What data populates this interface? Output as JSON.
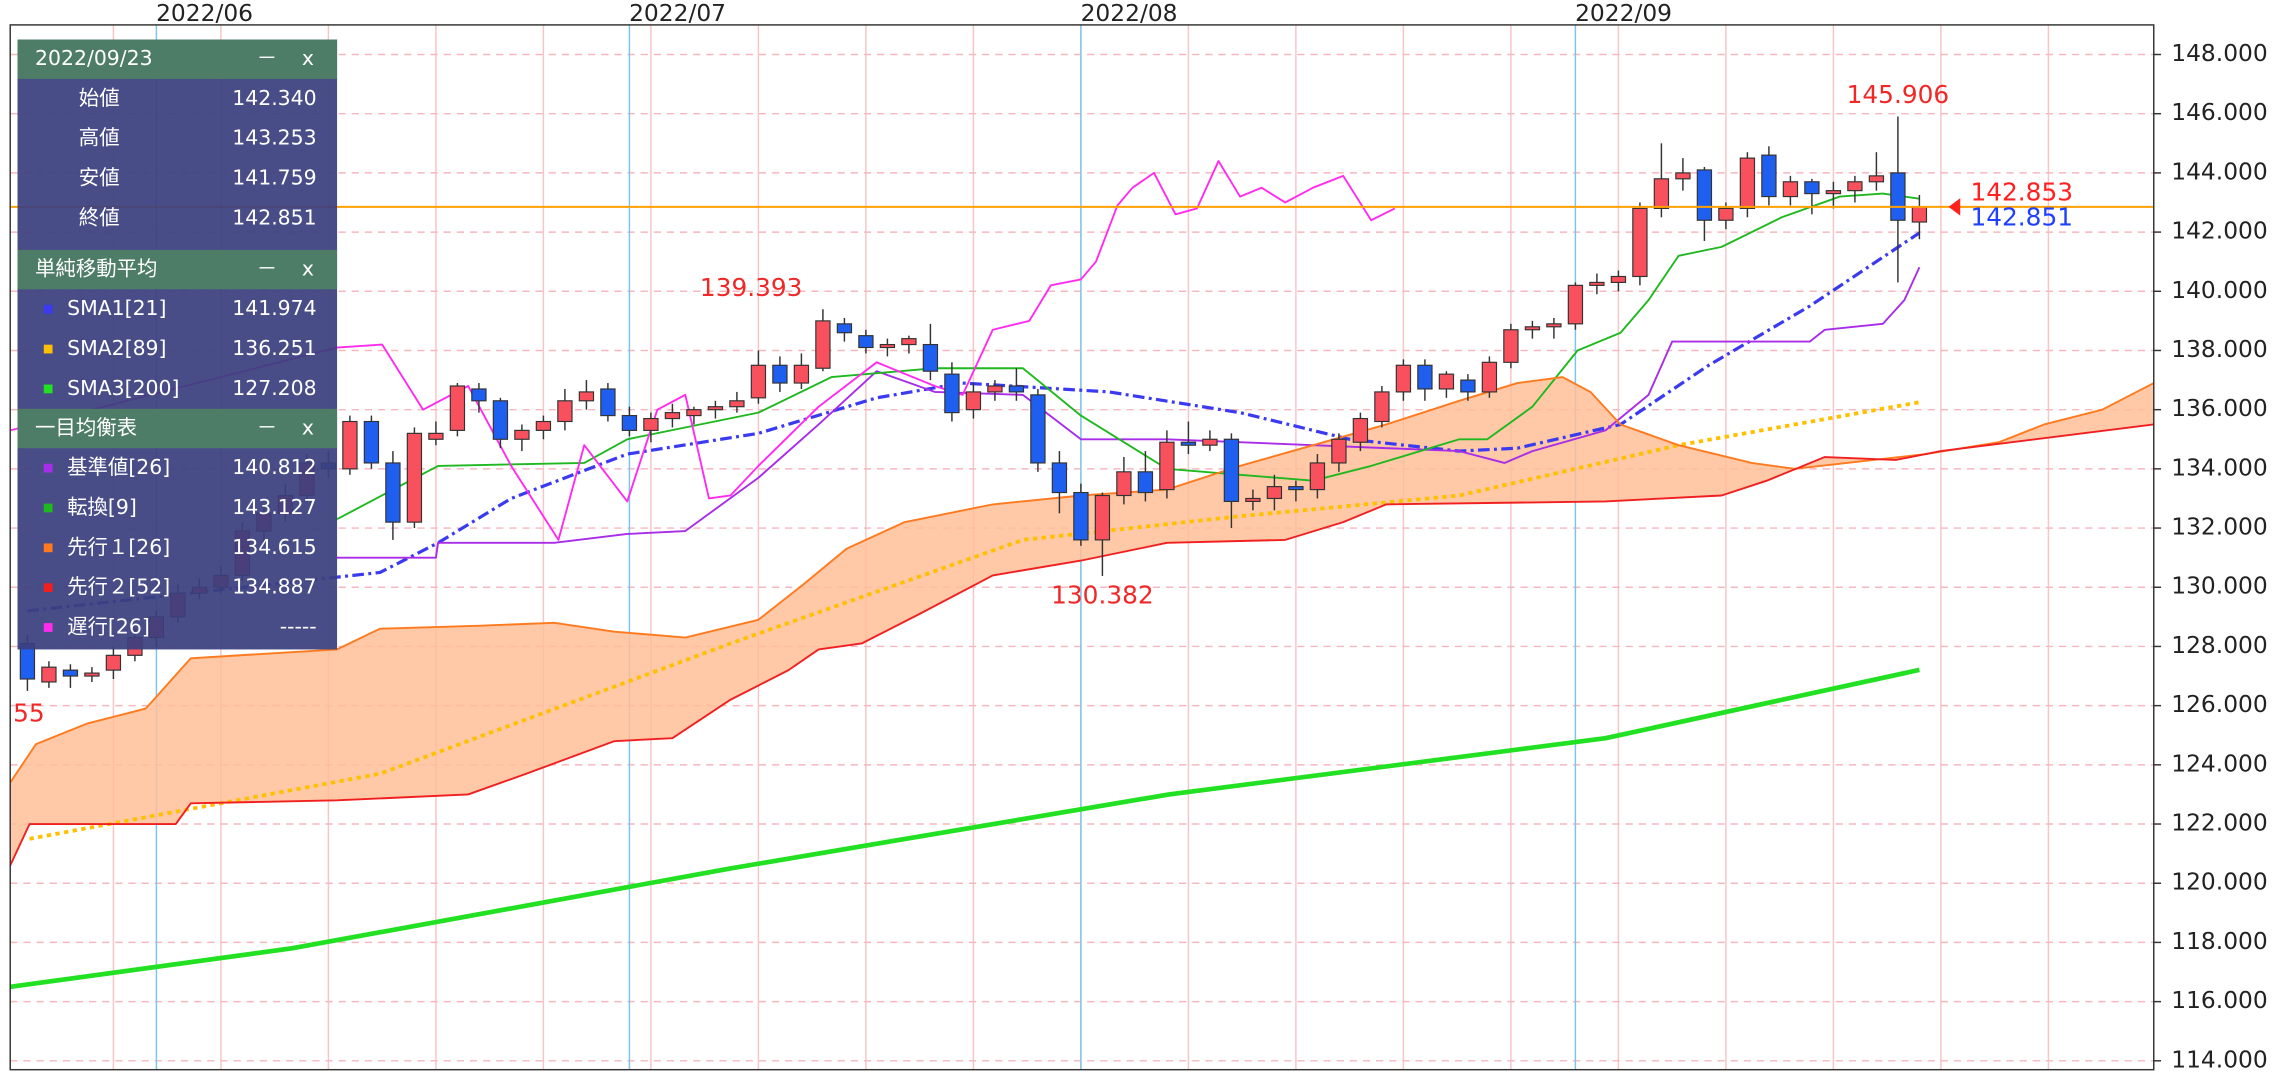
{
  "chart_data": {
    "type": "candlestick",
    "xlim": [
      -6.8,
      92.9
    ],
    "ylim": [
      113.7,
      149
    ],
    "xticks": [
      {
        "value": 0,
        "label": "2022/06"
      },
      {
        "value": 22,
        "label": "2022/07"
      },
      {
        "value": 43,
        "label": "2022/08"
      },
      {
        "value": 66,
        "label": "2022/09"
      }
    ],
    "yticks": [
      {
        "value": 114,
        "label": "114.000"
      },
      {
        "value": 116,
        "label": "116.000"
      },
      {
        "value": 118,
        "label": "118.000"
      },
      {
        "value": 120,
        "label": "120.000"
      },
      {
        "value": 122,
        "label": "122.000"
      },
      {
        "value": 124,
        "label": "124.000"
      },
      {
        "value": 126,
        "label": "126.000"
      },
      {
        "value": 128,
        "label": "128.000"
      },
      {
        "value": 130,
        "label": "130.000"
      },
      {
        "value": 132,
        "label": "132.000"
      },
      {
        "value": 134,
        "label": "134.000"
      },
      {
        "value": 136,
        "label": "136.000"
      },
      {
        "value": 138,
        "label": "138.000"
      },
      {
        "value": 140,
        "label": "140.000"
      },
      {
        "value": 142,
        "label": "142.000"
      },
      {
        "value": 144,
        "label": "144.000"
      },
      {
        "value": 146,
        "label": "146.000"
      },
      {
        "value": 148,
        "label": "148.000"
      }
    ],
    "grid": true,
    "up_color": "#f8505c",
    "down_color": "#1f5ff0",
    "candles": {
      "x": [
        -6,
        -5,
        -4,
        -3,
        -2,
        -1,
        0,
        1,
        2,
        3,
        4,
        5,
        6,
        7,
        8,
        9,
        10,
        11,
        12,
        13,
        14,
        15,
        16,
        17,
        18,
        19,
        20,
        21,
        22,
        23,
        24,
        25,
        26,
        27,
        28,
        29,
        30,
        31,
        32,
        33,
        34,
        35,
        36,
        37,
        38,
        39,
        40,
        41,
        42,
        43,
        44,
        45,
        46,
        47,
        48,
        49,
        50,
        51,
        52,
        53,
        54,
        55,
        56,
        57,
        58,
        59,
        60,
        61,
        62,
        63,
        64,
        65,
        66,
        67,
        68,
        69,
        70,
        71,
        72,
        73,
        74,
        75,
        76,
        77,
        78,
        79,
        80,
        81,
        82
      ],
      "open": [
        128.1,
        126.8,
        127.2,
        127.0,
        127.2,
        127.7,
        128.3,
        129.0,
        129.8,
        130.0,
        130.4,
        131.9,
        132.5,
        133.1,
        134.2,
        134.0,
        135.6,
        134.2,
        132.2,
        135.0,
        135.3,
        136.7,
        136.3,
        135.0,
        135.3,
        135.6,
        136.3,
        136.7,
        135.8,
        135.3,
        135.7,
        135.8,
        136.0,
        136.1,
        136.4,
        137.5,
        136.9,
        137.4,
        138.9,
        138.5,
        138.1,
        138.2,
        138.2,
        137.2,
        136.0,
        136.6,
        136.8,
        136.5,
        134.2,
        133.2,
        131.6,
        133.1,
        133.9,
        133.3,
        134.9,
        134.8,
        135.0,
        132.9,
        133.0,
        133.4,
        133.3,
        134.2,
        134.9,
        135.6,
        136.6,
        137.5,
        136.7,
        137.0,
        136.6,
        137.6,
        138.7,
        138.8,
        138.9,
        140.2,
        140.3,
        140.5,
        142.8,
        143.8,
        144.1,
        142.4,
        142.8,
        144.6,
        143.2,
        143.7,
        143.3,
        143.4,
        143.7,
        144.0,
        142.34
      ],
      "high": [
        128.4,
        127.5,
        127.4,
        127.3,
        128.0,
        128.6,
        129.2,
        130.1,
        130.3,
        130.7,
        132.2,
        132.8,
        133.5,
        134.5,
        134.6,
        135.8,
        135.8,
        134.6,
        135.4,
        135.6,
        136.9,
        136.9,
        136.4,
        135.5,
        135.8,
        136.7,
        137.0,
        136.9,
        136.1,
        135.9,
        136.2,
        136.1,
        136.3,
        136.6,
        138.0,
        137.8,
        137.9,
        139.393,
        139.1,
        138.7,
        138.4,
        138.5,
        138.9,
        137.6,
        136.9,
        137.0,
        137.4,
        136.7,
        134.6,
        133.5,
        133.2,
        134.4,
        134.6,
        135.3,
        135.6,
        135.3,
        135.2,
        133.3,
        133.8,
        133.6,
        134.5,
        135.2,
        135.9,
        136.8,
        137.7,
        137.7,
        137.3,
        137.2,
        137.8,
        138.9,
        139.0,
        139.1,
        140.3,
        140.6,
        140.7,
        143.0,
        145.0,
        144.5,
        144.2,
        143.0,
        144.7,
        144.9,
        143.9,
        143.8,
        143.7,
        143.9,
        144.7,
        145.906,
        143.253
      ],
      "low": [
        126.5,
        126.6,
        126.6,
        126.8,
        126.9,
        127.5,
        128.0,
        128.8,
        129.6,
        129.8,
        130.2,
        131.5,
        132.2,
        132.9,
        133.7,
        133.8,
        134.0,
        131.6,
        132.0,
        134.8,
        135.1,
        135.9,
        134.7,
        134.6,
        135.0,
        135.3,
        136.0,
        135.6,
        135.1,
        134.9,
        135.4,
        135.5,
        135.7,
        135.9,
        136.2,
        136.6,
        136.7,
        137.3,
        138.3,
        137.9,
        137.8,
        137.9,
        137.0,
        135.6,
        135.7,
        136.3,
        136.3,
        133.9,
        132.5,
        131.4,
        130.382,
        132.8,
        132.9,
        133.0,
        134.5,
        134.6,
        132.0,
        132.6,
        132.6,
        132.9,
        133.0,
        133.9,
        134.6,
        135.4,
        136.3,
        136.3,
        136.4,
        136.3,
        136.4,
        137.4,
        138.4,
        138.4,
        138.7,
        139.9,
        140.0,
        140.2,
        142.5,
        143.4,
        141.7,
        142.1,
        142.5,
        142.9,
        142.9,
        142.6,
        142.8,
        143.0,
        143.4,
        140.3,
        141.759
      ],
      "close": [
        126.9,
        127.3,
        127.0,
        127.1,
        127.7,
        128.3,
        129.0,
        129.8,
        130.0,
        130.4,
        131.9,
        132.5,
        133.1,
        134.2,
        134.0,
        135.6,
        134.2,
        132.2,
        135.2,
        135.2,
        136.8,
        136.3,
        135.0,
        135.3,
        135.6,
        136.3,
        136.6,
        135.8,
        135.3,
        135.7,
        135.9,
        136.0,
        136.1,
        136.3,
        137.5,
        136.9,
        137.5,
        139.0,
        138.6,
        138.1,
        138.2,
        138.4,
        137.3,
        135.9,
        136.6,
        136.8,
        136.6,
        134.2,
        133.2,
        131.6,
        133.1,
        133.9,
        133.2,
        134.9,
        134.8,
        135.0,
        132.9,
        133.0,
        133.4,
        133.3,
        134.2,
        135.0,
        135.7,
        136.6,
        137.5,
        136.7,
        137.2,
        136.6,
        137.6,
        138.7,
        138.8,
        138.9,
        140.2,
        140.3,
        140.5,
        142.8,
        143.8,
        144.0,
        142.4,
        142.8,
        144.5,
        143.2,
        143.7,
        143.3,
        143.4,
        143.7,
        143.9,
        142.4,
        142.851
      ]
    },
    "series": [
      {
        "name": "SMA1[21]",
        "group": "単純移動平均",
        "value_label": "141.974",
        "color": "#3a3af0",
        "style": "dashdot",
        "width": 2.2,
        "x": [
          -6.0,
          10.4,
          13.1,
          16.5,
          21.9,
          28.0,
          33.5,
          37.5,
          44.3,
          50.4,
          55.5,
          60.6,
          63.3,
          68.1,
          72.2,
          76.9,
          82
        ],
        "values": [
          129.2,
          130.5,
          131.5,
          133.0,
          134.5,
          135.2,
          136.4,
          136.9,
          136.6,
          135.9,
          135.0,
          134.6,
          134.7,
          135.5,
          137.5,
          139.5,
          141.974
        ]
      },
      {
        "name": "SMA2[89]",
        "group": "単純移動平均",
        "value_label": "136.251",
        "color": "#ffc000",
        "style": "dotted",
        "width": 2.6,
        "x": [
          -5.9,
          10.4,
          26.7,
          40.3,
          50.4,
          60.6,
          70.8,
          82
        ],
        "values": [
          121.5,
          123.7,
          128.1,
          131.6,
          132.4,
          133.1,
          134.8,
          136.251
        ]
      },
      {
        "name": "SMA3[200]",
        "group": "単純移動平均",
        "value_label": "127.208",
        "color": "#22e022",
        "style": "solid",
        "width": 3.2,
        "x": [
          -6.8,
          6.3,
          26.7,
          47.1,
          67.4,
          82
        ],
        "values": [
          116.5,
          117.8,
          120.5,
          123.0,
          124.9,
          127.208
        ]
      },
      {
        "name": "基準値[26]",
        "group": "一目均衡表",
        "value_label": "140.812",
        "color": "#a82ce8",
        "style": "solid",
        "width": 1.3,
        "x": [
          8.4,
          13.0,
          13.1,
          18.5,
          21.9,
          24.6,
          28.0,
          30.8,
          33.5,
          36.2,
          40.3,
          43.0,
          47.0,
          53.8,
          60.6,
          62.7,
          64.0,
          67.4,
          69.4,
          70.5,
          76.9,
          77.6,
          80.3,
          81.3,
          82
        ],
        "values": [
          131.0,
          131.0,
          131.5,
          131.5,
          131.8,
          131.9,
          133.7,
          135.5,
          137.3,
          136.6,
          136.5,
          135.0,
          135.0,
          134.8,
          134.6,
          134.2,
          134.6,
          135.3,
          136.5,
          138.3,
          138.3,
          138.7,
          138.9,
          139.7,
          140.812
        ]
      },
      {
        "name": "転換[9]",
        "group": "一目均衡表",
        "value_label": "143.127",
        "color": "#1fb81f",
        "style": "solid",
        "width": 1.3,
        "x": [
          8.4,
          13.1,
          19.9,
          21.9,
          28.0,
          31.4,
          36.2,
          40.3,
          43.0,
          47.0,
          50.4,
          53.8,
          56.5,
          60.6,
          61.9,
          64.0,
          66.1,
          68.1,
          69.4,
          70.8,
          72.8,
          75.6,
          78.3,
          80.3,
          82
        ],
        "values": [
          132.3,
          134.1,
          134.2,
          135.0,
          135.9,
          137.1,
          137.4,
          137.4,
          135.8,
          134.0,
          133.8,
          133.6,
          134.1,
          135.0,
          135.0,
          136.1,
          138.0,
          138.6,
          139.7,
          141.2,
          141.5,
          142.5,
          143.2,
          143.3,
          143.127
        ]
      },
      {
        "name": "先行１[26]",
        "group": "一目均衡表",
        "value_label": "134.615",
        "color": "#ff7a1e",
        "style": "solid",
        "width": 1.3,
        "cloud": true,
        "x": [
          -6.8,
          -5.6,
          -3.2,
          -0.5,
          1.6,
          8.4,
          10.4,
          15.1,
          18.5,
          21.3,
          24.6,
          28.0,
          30.1,
          32.1,
          34.8,
          38.9,
          43.0,
          47.0,
          50.4,
          53.8,
          57.2,
          60.6,
          63.3,
          65.4,
          66.7,
          68.1,
          70.8,
          74.2,
          76.2,
          82.3,
          85.7,
          87.8,
          90.5,
          92.9
        ],
        "values": [
          123.4,
          124.7,
          125.4,
          125.9,
          127.6,
          127.9,
          128.6,
          128.7,
          128.8,
          128.5,
          128.3,
          128.9,
          130.1,
          131.3,
          132.2,
          132.8,
          133.1,
          133.3,
          134.1,
          134.8,
          135.5,
          136.3,
          136.9,
          137.1,
          136.6,
          135.5,
          134.8,
          134.2,
          134.0,
          134.5,
          134.9,
          135.5,
          136.0,
          136.9
        ]
      },
      {
        "name": "先行２[52]",
        "group": "一目均衡表",
        "value_label": "134.887",
        "color": "#f02020",
        "style": "solid",
        "width": 1.3,
        "cloud": true,
        "x": [
          -6.8,
          -5.9,
          0.9,
          1.6,
          8.4,
          14.5,
          17.2,
          21.3,
          24.0,
          26.7,
          29.4,
          30.8,
          32.8,
          35.5,
          38.9,
          43.0,
          47.0,
          52.5,
          55.2,
          57.2,
          67.4,
          72.8,
          74.9,
          77.6,
          80.9,
          83.0,
          92.9
        ],
        "values": [
          120.6,
          122.0,
          122.0,
          122.7,
          122.8,
          123.0,
          123.7,
          124.8,
          124.9,
          126.2,
          127.2,
          127.9,
          128.1,
          129.1,
          130.4,
          130.9,
          131.5,
          131.6,
          132.2,
          132.8,
          132.9,
          133.1,
          133.6,
          134.4,
          134.3,
          134.6,
          135.5
        ]
      },
      {
        "name": "遅行[26]",
        "group": "一目均衡表",
        "value_label": "-----",
        "color": "#ff2cf0",
        "style": "solid",
        "width": 1.3,
        "x": [
          -6.8,
          8.4,
          10.5,
          12.4,
          14.5,
          16.5,
          18.7,
          19.9,
          21.9,
          23.3,
          24.6,
          25.7,
          26.7,
          28.0,
          30.8,
          33.5,
          36.2,
          37.5,
          38.9,
          40.6,
          41.6,
          43.0,
          43.7,
          44.7,
          45.4,
          46.4,
          47.4,
          48.4,
          49.4,
          50.4,
          51.4,
          52.5,
          53.8,
          55.2,
          56.5,
          57.6
        ],
        "values": [
          135.3,
          138.1,
          138.2,
          136.0,
          136.8,
          134.1,
          131.6,
          134.8,
          132.9,
          136.0,
          136.5,
          133.0,
          133.1,
          134.1,
          136.1,
          137.6,
          136.8,
          136.5,
          138.7,
          139.0,
          140.2,
          140.4,
          141.0,
          142.9,
          143.5,
          144.0,
          142.6,
          142.8,
          144.4,
          143.2,
          143.5,
          143.0,
          143.5,
          143.9,
          142.4,
          142.8
        ]
      }
    ],
    "cloud_fill": "#ffbe96",
    "price_line_color": "#ffa000",
    "price_markers": [
      {
        "value": 142.853,
        "color": "#ff2020"
      },
      {
        "value": 142.851,
        "color": "#2040ff"
      }
    ],
    "annotation_color": "#f02828",
    "annotations": [
      {
        "text": "145.906",
        "x": 81,
        "y": 145.906,
        "position": "above"
      },
      {
        "text": "139.393",
        "x": 31,
        "y": 139.393,
        "position": "left"
      },
      {
        "text": "130.382",
        "x": 44,
        "y": 130.382,
        "position": "below"
      },
      {
        "text": "55",
        "x": -6.8,
        "y": 125.7,
        "position": "right"
      }
    ],
    "info_panel": {
      "date": "2022/09/23",
      "minimize": "－",
      "close": "x",
      "ohlc_labels": [
        "始値",
        "高値",
        "安値",
        "終値"
      ],
      "ohlc_values": [
        "142.340",
        "143.253",
        "141.759",
        "142.851"
      ]
    }
  }
}
